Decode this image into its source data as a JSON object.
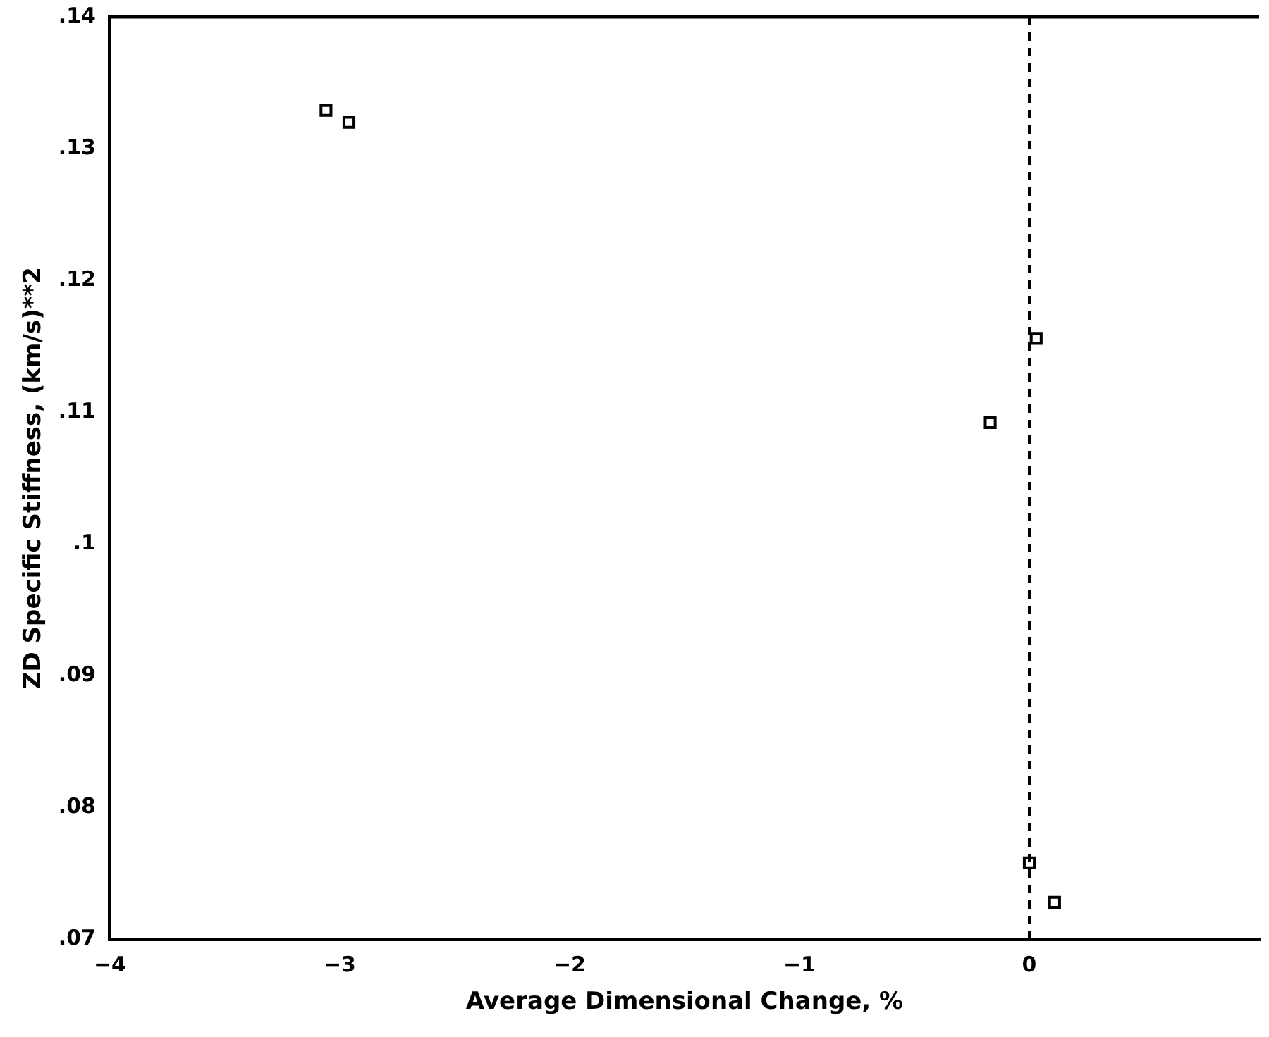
{
  "chart_data": {
    "type": "scatter",
    "xlabel": "Average Dimensional Change, %",
    "ylabel": "ZD Specific Stiffness, (km/s)**2",
    "x": [
      -3.06,
      -2.96,
      -0.17,
      0.03,
      0.0,
      0.11
    ],
    "values": [
      0.1329,
      0.132,
      0.1092,
      0.1156,
      0.0758,
      0.0728
    ],
    "color": "#000000",
    "marker": "square",
    "grid": false,
    "legend": false,
    "xlim": [
      -4,
      1
    ],
    "xticks": [
      {
        "value": -4,
        "label": "−4"
      },
      {
        "value": -3,
        "label": "−3"
      },
      {
        "value": -2,
        "label": "−2"
      },
      {
        "value": -1,
        "label": "−1"
      },
      0
    ],
    "ylim": [
      0.07,
      0.14
    ],
    "yticks": [
      {
        "value": 0.07,
        "label": ".07"
      },
      {
        "value": 0.08,
        "label": ".08"
      },
      {
        "value": 0.09,
        "label": ".09"
      },
      {
        "value": 0.1,
        "label": ".1"
      },
      {
        "value": 0.11,
        "label": ".11"
      },
      {
        "value": 0.12,
        "label": ".12"
      },
      {
        "value": 0.13,
        "label": ".13"
      },
      {
        "value": 0.14,
        "label": ".14"
      }
    ],
    "ref_lines": [
      {
        "axis": "x",
        "value": 0,
        "line_style": "dashed"
      }
    ]
  }
}
